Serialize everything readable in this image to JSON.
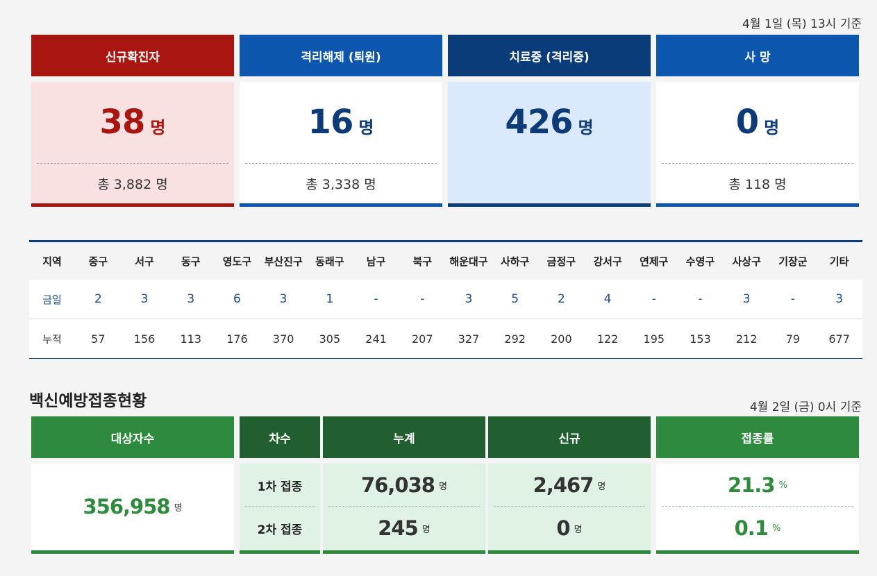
{
  "covid": {
    "date": "4월 1일 (목)  13시 기준",
    "cards": [
      {
        "label": "신규확진자",
        "value": "38",
        "unit": "명",
        "total": "총 3,882 명",
        "header_color": "#a8160f",
        "bar_color": "#a8160f",
        "value_color": "#a8160f",
        "body_color": "#f9e1e2"
      },
      {
        "label": "격리해제 (퇴원)",
        "value": "16",
        "unit": "명",
        "total": "총 3,338 명",
        "header_color": "#0c57ad",
        "bar_color": "#0c57ad",
        "value_color": "#0c3b78",
        "body_color": "#ffffff"
      },
      {
        "label": "치료중 (격리중)",
        "value": "426",
        "unit": "명",
        "total": "",
        "header_color": "#0a3c7a",
        "bar_color": "#0a3c7a",
        "value_color": "#0c3b78",
        "body_color": "#dae9fb"
      },
      {
        "label": "사 망",
        "value": "0",
        "unit": "명",
        "total": "총 118 명",
        "header_color": "#0c57ad",
        "bar_color": "#0c57ad",
        "value_color": "#0c3b78",
        "body_color": "#ffffff"
      }
    ]
  },
  "districts": {
    "headers": [
      "지역",
      "중구",
      "서구",
      "동구",
      "영도구",
      "부산진구",
      "동래구",
      "남구",
      "북구",
      "해운대구",
      "사하구",
      "금정구",
      "강서구",
      "연제구",
      "수영구",
      "사상구",
      "기장군",
      "기타"
    ],
    "today": [
      "금일",
      "2",
      "3",
      "3",
      "6",
      "3",
      "1",
      "-",
      "-",
      "3",
      "5",
      "2",
      "4",
      "-",
      "-",
      "3",
      "-",
      "3"
    ],
    "cumulative": [
      "누적",
      "57",
      "156",
      "113",
      "176",
      "370",
      "305",
      "241",
      "207",
      "327",
      "292",
      "200",
      "122",
      "195",
      "153",
      "212",
      "79",
      "677"
    ]
  },
  "vaccine": {
    "title": "백신예방접종현황",
    "date": "4월 2일 (금)  0시 기준",
    "headers": {
      "target": "대상자수",
      "round": "차수",
      "cumulative": "누계",
      "new": "신규",
      "rate": "접종률"
    },
    "target_value": "356,958",
    "unit_person": "명",
    "unit_percent": "%",
    "rounds": [
      {
        "label": "1차 접종",
        "cumulative": "76,038",
        "new": "2,467",
        "rate": "21.3"
      },
      {
        "label": "2차 접종",
        "cumulative": "245",
        "new": "0",
        "rate": "0.1"
      }
    ],
    "colors": {
      "header_light": "#2e8a3c",
      "header_dark": "#215f31",
      "cell_bg": "#dff2e4",
      "accent": "#2e8a3c"
    }
  }
}
